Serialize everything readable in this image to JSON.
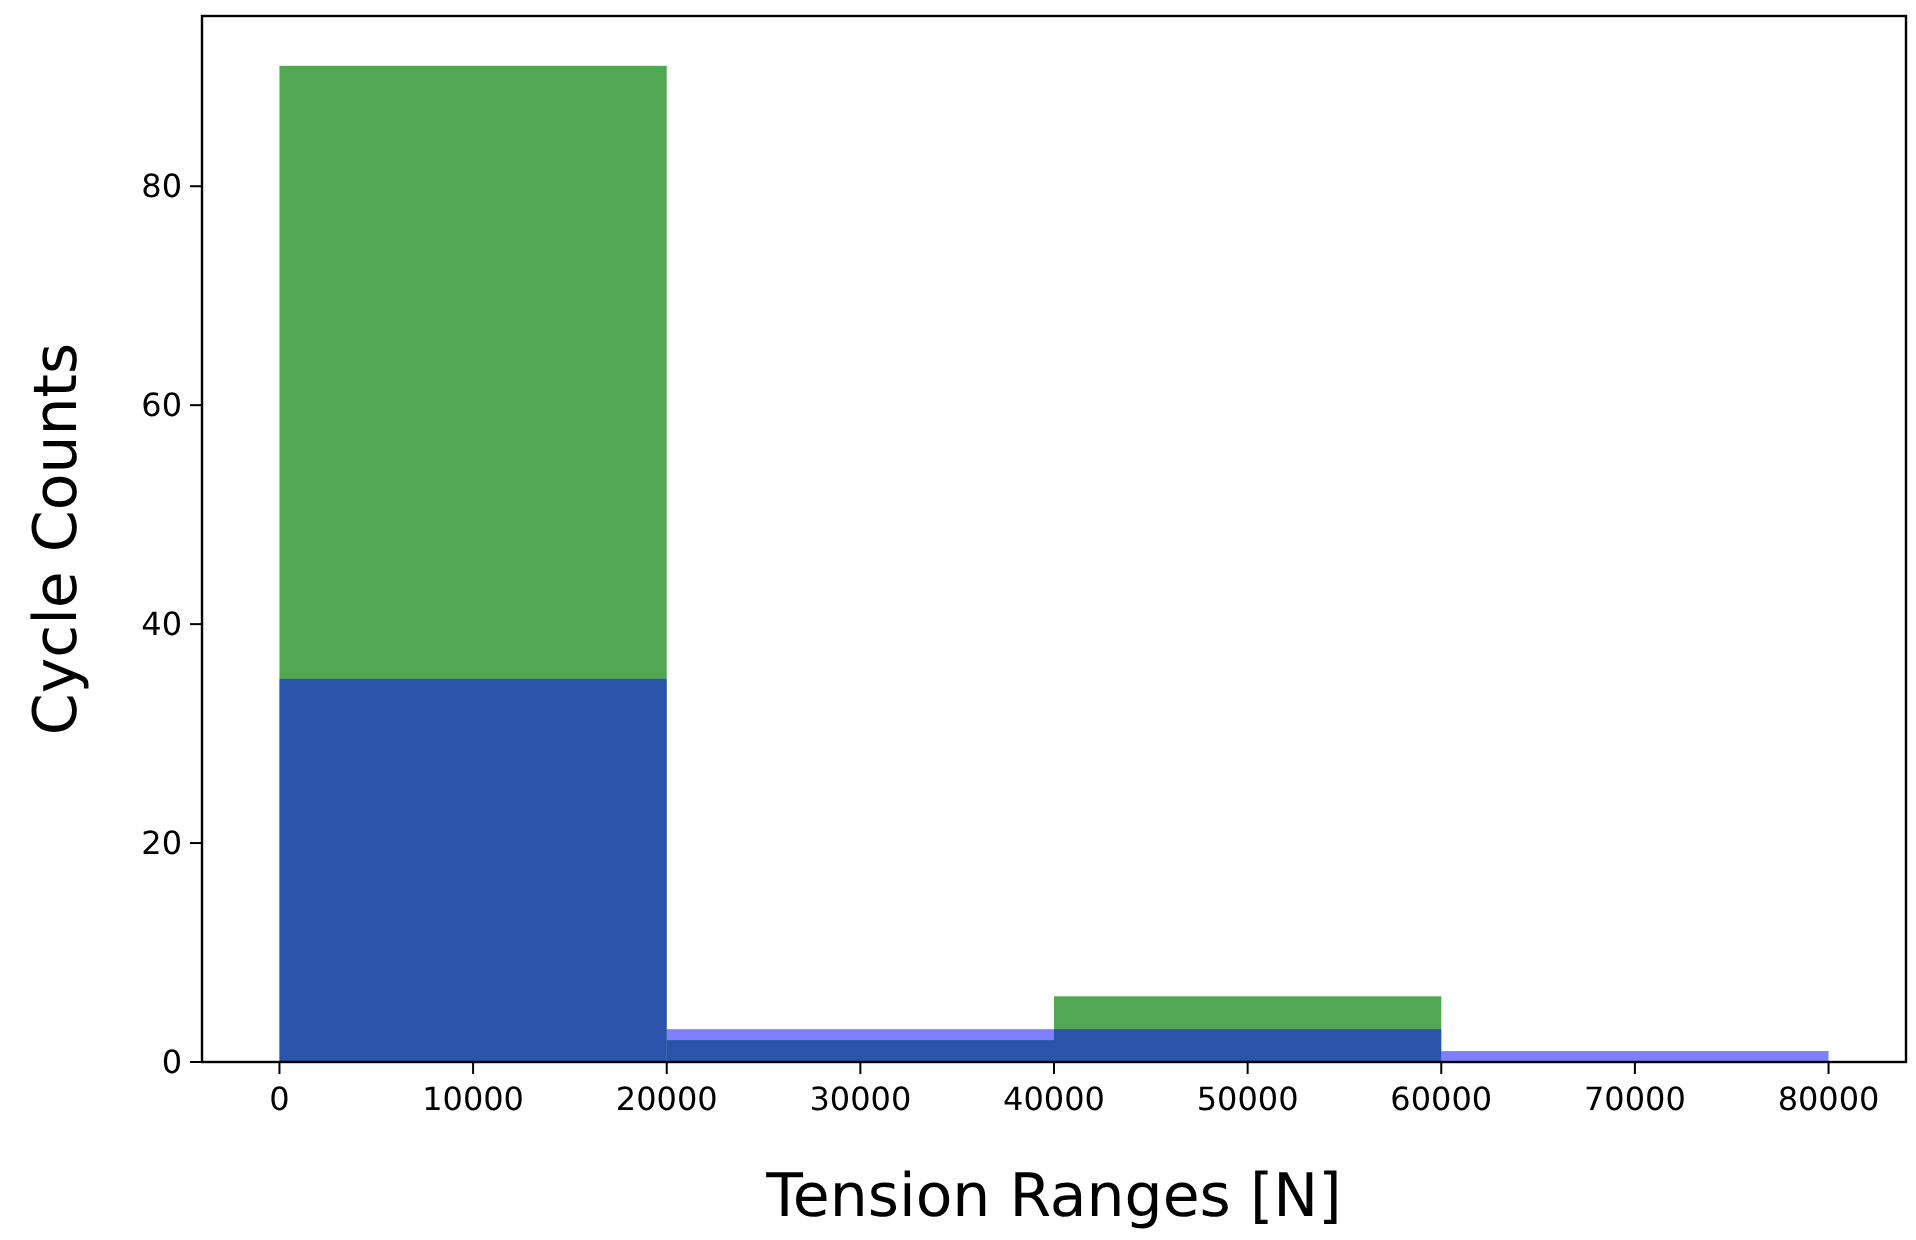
{
  "chart_data": {
    "type": "histogram",
    "xlabel": "Tension Ranges [N]",
    "ylabel": "Cycle Counts",
    "bins": [
      0,
      20000,
      40000,
      60000,
      80000
    ],
    "series": [
      {
        "color": "#4fa64f",
        "values": [
          91,
          2,
          6,
          0
        ]
      },
      {
        "color": "#0000ff",
        "values": [
          35,
          3,
          3,
          1
        ]
      }
    ],
    "xlim": [
      -4000,
      84000
    ],
    "xticks": [
      0,
      10000,
      20000,
      30000,
      40000,
      50000,
      60000,
      70000,
      80000
    ],
    "ylim": [
      0,
      95.55
    ],
    "yticks": [
      0,
      20,
      40,
      60,
      80
    ],
    "grid": false
  }
}
